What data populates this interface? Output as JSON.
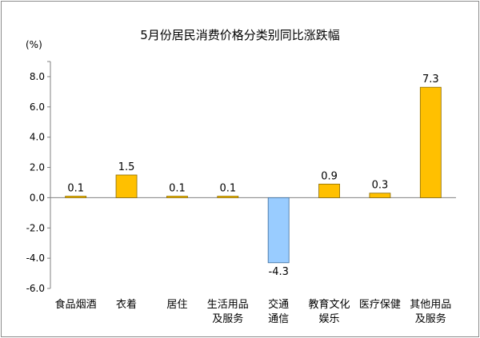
{
  "chart_data": {
    "type": "bar",
    "title": "5月份居民消费价格分类别同比涨跌幅",
    "unit": "(%)",
    "categories": [
      [
        "食品烟酒"
      ],
      [
        "衣着"
      ],
      [
        "居住"
      ],
      [
        "生活用品",
        "及服务"
      ],
      [
        "交通",
        "通信"
      ],
      [
        "教育文化",
        "娱乐"
      ],
      [
        "医疗保健"
      ],
      [
        "其他用品",
        "及服务"
      ]
    ],
    "values": [
      0.1,
      1.5,
      0.1,
      0.1,
      -4.3,
      0.9,
      0.3,
      7.3
    ],
    "data_labels": [
      "0.1",
      "1.5",
      "0.1",
      "0.1",
      "-4.3",
      "0.9",
      "0.3",
      "7.3"
    ],
    "y_ticks": [
      "-6.0",
      "-4.0",
      "-2.0",
      "0.0",
      "2.0",
      "4.0",
      "6.0",
      "8.0"
    ],
    "ylim": [
      -6,
      9
    ],
    "grid": false,
    "colors": {
      "positive": "#ffc000",
      "positive_stroke": "#8a6a00",
      "negative": "#99ccff",
      "negative_stroke": "#3a6a99",
      "axis": "#808080"
    }
  }
}
